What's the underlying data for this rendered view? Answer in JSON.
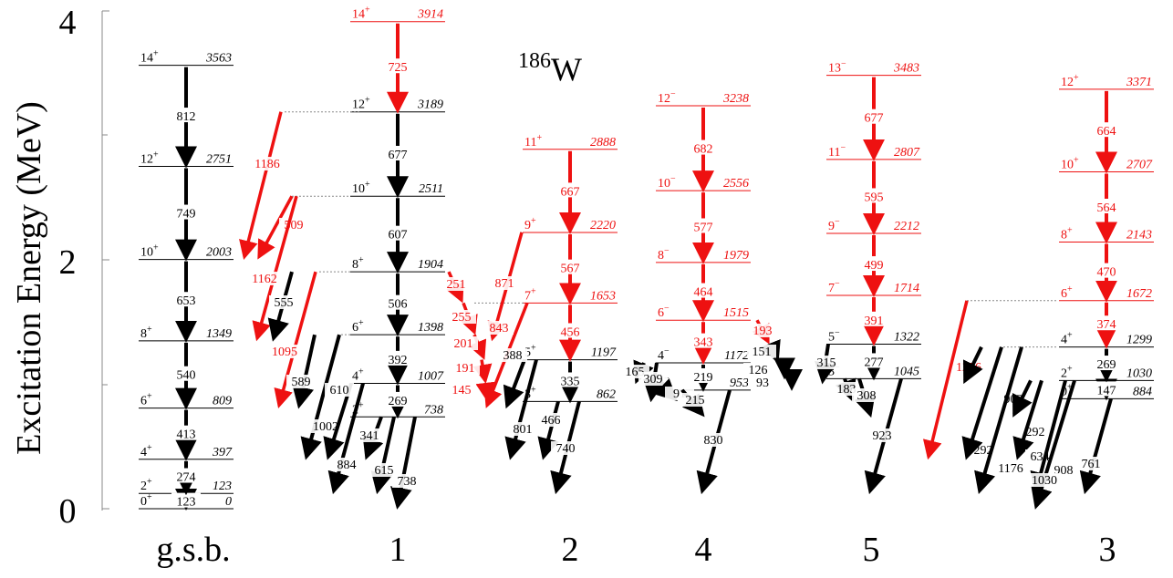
{
  "title": {
    "mass": "186",
    "element": "W"
  },
  "axis": {
    "label": "Excitation Energy (MeV)",
    "ticks": [
      "0",
      "2",
      "4"
    ],
    "range_kev": [
      0,
      4000
    ]
  },
  "colors": {
    "black": "#000000",
    "red": "#ee1111",
    "dotted": "#888888"
  },
  "bands": [
    {
      "id": "gsb",
      "label": "g.s.b.",
      "color": "black",
      "levels": [
        {
          "spin": "0",
          "parity": "+",
          "energy": "0",
          "e": 0
        },
        {
          "spin": "2",
          "parity": "+",
          "energy": "123",
          "e": 123
        },
        {
          "spin": "4",
          "parity": "+",
          "energy": "397",
          "e": 397
        },
        {
          "spin": "6",
          "parity": "+",
          "energy": "809",
          "e": 809
        },
        {
          "spin": "8",
          "parity": "+",
          "energy": "1349",
          "e": 1349
        },
        {
          "spin": "10",
          "parity": "+",
          "energy": "2003",
          "e": 2003
        },
        {
          "spin": "12",
          "parity": "+",
          "energy": "2751",
          "e": 2751
        },
        {
          "spin": "14",
          "parity": "+",
          "energy": "3563",
          "e": 3563
        }
      ],
      "transitions": [
        "123",
        "274",
        "413",
        "540",
        "653",
        "749",
        "812"
      ]
    },
    {
      "id": "b1",
      "label": "1",
      "color": "black",
      "levels": [
        {
          "spin": "2",
          "parity": "+",
          "energy": "738",
          "e": 738
        },
        {
          "spin": "4",
          "parity": "+",
          "energy": "1007",
          "e": 1007
        },
        {
          "spin": "6",
          "parity": "+",
          "energy": "1398",
          "e": 1398
        },
        {
          "spin": "8",
          "parity": "+",
          "energy": "1904",
          "e": 1904
        },
        {
          "spin": "10",
          "parity": "+",
          "energy": "2511",
          "e": 2511
        },
        {
          "spin": "12",
          "parity": "+",
          "energy": "3189",
          "e": 3189
        },
        {
          "spin": "14",
          "parity": "+",
          "energy": "3914",
          "e": 3914,
          "red": true
        }
      ],
      "transitions": [
        "269",
        "392",
        "506",
        "607",
        "677",
        "725"
      ]
    },
    {
      "id": "b2",
      "label": "2",
      "color": "red",
      "levels": [
        {
          "spin": "3",
          "parity": "+",
          "energy": "862",
          "e": 862,
          "black": true
        },
        {
          "spin": "5",
          "parity": "+",
          "energy": "1197",
          "e": 1197,
          "black": true
        },
        {
          "spin": "7",
          "parity": "+",
          "energy": "1653",
          "e": 1653
        },
        {
          "spin": "9",
          "parity": "+",
          "energy": "2220",
          "e": 2220
        },
        {
          "spin": "11",
          "parity": "+",
          "energy": "2888",
          "e": 2888
        }
      ],
      "transitions": [
        "335",
        "456",
        "567",
        "667"
      ]
    },
    {
      "id": "b4",
      "label": "4",
      "color": "red",
      "levels": [
        {
          "spin": "2",
          "parity": "−",
          "energy": "953",
          "e": 953,
          "black": true
        },
        {
          "spin": "4",
          "parity": "−",
          "energy": "1172",
          "e": 1172,
          "black": true
        },
        {
          "spin": "6",
          "parity": "−",
          "energy": "1515",
          "e": 1515
        },
        {
          "spin": "8",
          "parity": "−",
          "energy": "1979",
          "e": 1979
        },
        {
          "spin": "10",
          "parity": "−",
          "energy": "2556",
          "e": 2556
        },
        {
          "spin": "12",
          "parity": "−",
          "energy": "3238",
          "e": 3238
        }
      ],
      "transitions": [
        "219",
        "343",
        "464",
        "577",
        "682"
      ]
    },
    {
      "id": "b5",
      "label": "5",
      "color": "red",
      "levels": [
        {
          "spin": "3",
          "parity": "−",
          "energy": "1045",
          "e": 1045,
          "black": true
        },
        {
          "spin": "5",
          "parity": "−",
          "energy": "1322",
          "e": 1322,
          "black": true
        },
        {
          "spin": "7",
          "parity": "−",
          "energy": "1714",
          "e": 1714
        },
        {
          "spin": "9",
          "parity": "−",
          "energy": "2212",
          "e": 2212
        },
        {
          "spin": "11",
          "parity": "−",
          "energy": "2807",
          "e": 2807
        },
        {
          "spin": "13",
          "parity": "−",
          "energy": "3483",
          "e": 3483
        }
      ],
      "transitions": [
        "277",
        "391",
        "499",
        "595",
        "677"
      ]
    },
    {
      "id": "b3",
      "label": "3",
      "color": "red",
      "levels": [
        {
          "spin": "0",
          "parity": "+",
          "energy": "884",
          "e": 884,
          "black": true
        },
        {
          "spin": "2",
          "parity": "+",
          "energy": "1030",
          "e": 1030,
          "black": true
        },
        {
          "spin": "4",
          "parity": "+",
          "energy": "1299",
          "e": 1299,
          "black": true
        },
        {
          "spin": "6",
          "parity": "+",
          "energy": "1672",
          "e": 1672
        },
        {
          "spin": "8",
          "parity": "+",
          "energy": "2143",
          "e": 2143
        },
        {
          "spin": "10",
          "parity": "+",
          "energy": "2707",
          "e": 2707
        },
        {
          "spin": "12",
          "parity": "+",
          "energy": "3371",
          "e": 3371
        }
      ],
      "transitions": [
        "147",
        "269",
        "374",
        "470",
        "564",
        "664"
      ]
    }
  ],
  "interband": [
    {
      "label": "1186",
      "from": 3189,
      "to": 2003,
      "red": true
    },
    {
      "label": "509",
      "from": 2511,
      "to": 2003,
      "red": true
    },
    {
      "label": "1162",
      "from": 2511,
      "to": 1349,
      "red": true
    },
    {
      "label": "1095",
      "from": 1904,
      "to": 809,
      "red": true
    },
    {
      "label": "555",
      "from": 1904,
      "to": 1349
    },
    {
      "label": "589",
      "from": 1398,
      "to": 809
    },
    {
      "label": "1002",
      "from": 1398,
      "to": 397
    },
    {
      "label": "610",
      "from": 1007,
      "to": 397
    },
    {
      "label": "884",
      "from": 1007,
      "to": 123
    },
    {
      "label": "341",
      "from": 738,
      "to": 397
    },
    {
      "label": "615",
      "from": 738,
      "to": 123
    },
    {
      "label": "738",
      "from": 738,
      "to": 0
    },
    {
      "label": "251",
      "from": 1904,
      "to": 1653,
      "red": true
    },
    {
      "label": "255",
      "from": 1653,
      "to": 1398,
      "red": true
    },
    {
      "label": "201",
      "from": 1398,
      "to": 1197,
      "red": true
    },
    {
      "label": "191",
      "from": 1197,
      "to": 1007,
      "red": true
    },
    {
      "label": "145",
      "from": 1007,
      "to": 862,
      "red": true
    },
    {
      "label": "871",
      "from": 2220,
      "to": 1349,
      "red": true
    },
    {
      "label": "843",
      "from": 1653,
      "to": 809,
      "red": true
    },
    {
      "label": "388",
      "from": 1197,
      "to": 809
    },
    {
      "label": "801",
      "from": 1197,
      "to": 397
    },
    {
      "label": "466",
      "from": 862,
      "to": 397
    },
    {
      "label": "740",
      "from": 862,
      "to": 123
    },
    {
      "label": "165",
      "from": 1172,
      "to": 1007
    },
    {
      "label": "309",
      "from": 1172,
      "to": 862
    },
    {
      "label": "91",
      "from": 953,
      "to": 862
    },
    {
      "label": "215",
      "from": 953,
      "to": 738
    },
    {
      "label": "830",
      "from": 953,
      "to": 123
    },
    {
      "label": "193",
      "from": 1515,
      "to": 1322,
      "red": true
    },
    {
      "label": "151",
      "from": 1322,
      "to": 1172
    },
    {
      "label": "126",
      "from": 1172,
      "to": 1045
    },
    {
      "label": "93",
      "from": 1045,
      "to": 953
    },
    {
      "label": "315",
      "from": 1322,
      "to": 1007
    },
    {
      "label": "183",
      "from": 1045,
      "to": 862
    },
    {
      "label": "308",
      "from": 1045,
      "to": 738
    },
    {
      "label": "923",
      "from": 1045,
      "to": 123
    },
    {
      "label": "1276",
      "from": 1672,
      "to": 397,
      "red": true
    },
    {
      "label": "292",
      "from": 1299,
      "to": 1007
    },
    {
      "label": "902",
      "from": 1299,
      "to": 397
    },
    {
      "label": "292",
      "from": 1030,
      "to": 738
    },
    {
      "label": "634",
      "from": 1030,
      "to": 397
    },
    {
      "label": "1176",
      "from": 1299,
      "to": 123
    },
    {
      "label": "908",
      "from": 1030,
      "to": 123
    },
    {
      "label": "1030",
      "from": 1030,
      "to": 0
    },
    {
      "label": "761",
      "from": 884,
      "to": 123
    }
  ]
}
